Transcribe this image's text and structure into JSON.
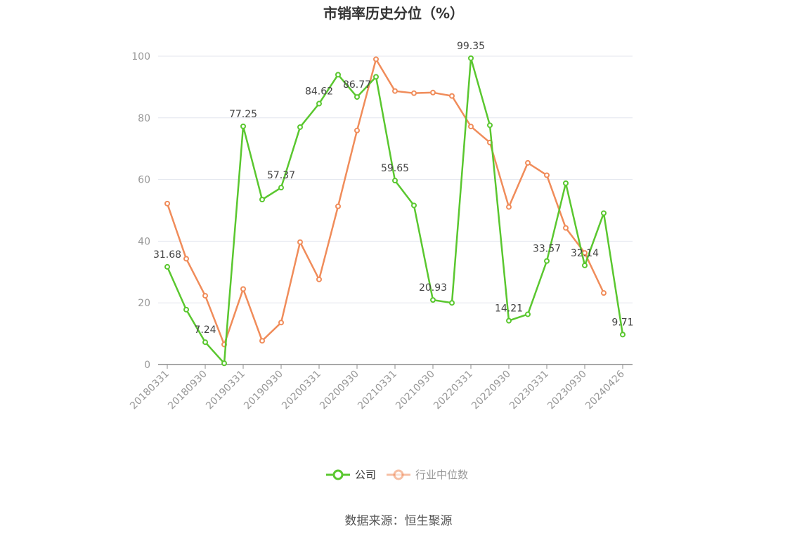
{
  "chart_data": {
    "type": "line",
    "title": "市销率历史分位（%）",
    "xlabel": "",
    "ylabel": "",
    "ylim": [
      0,
      100
    ],
    "yticks": [
      0,
      20,
      40,
      60,
      80,
      100
    ],
    "grid": true,
    "legend_position": "bottom",
    "x": [
      "20180331",
      "20180630",
      "20180930",
      "20181231",
      "20190331",
      "20190630",
      "20190930",
      "20191231",
      "20200331",
      "20200630",
      "20200930",
      "20201231",
      "20210331",
      "20210630",
      "20210930",
      "20211231",
      "20220331",
      "20220630",
      "20220930",
      "20221231",
      "20230331",
      "20230630",
      "20230930",
      "20231231",
      "20240426"
    ],
    "x_tick_labels": [
      "20180331",
      "20180930",
      "20190331",
      "20190930",
      "20200331",
      "20200930",
      "20210331",
      "20210930",
      "20220331",
      "20220930",
      "20230331",
      "20230930",
      "20240426"
    ],
    "series": [
      {
        "name": "公司",
        "color": "#5ac72f",
        "values": [
          31.68,
          17.8,
          7.24,
          0.4,
          77.25,
          53.5,
          57.37,
          77.0,
          84.62,
          94.0,
          86.77,
          93.3,
          59.65,
          51.6,
          20.93,
          20.0,
          99.35,
          77.6,
          14.21,
          16.3,
          33.57,
          58.8,
          32.14,
          49.1,
          9.71
        ],
        "data_labels": [
          {
            "index": 0,
            "text": "31.68"
          },
          {
            "index": 2,
            "text": "7.24"
          },
          {
            "index": 4,
            "text": "77.25"
          },
          {
            "index": 6,
            "text": "57.37"
          },
          {
            "index": 8,
            "text": "84.62"
          },
          {
            "index": 10,
            "text": "86.77"
          },
          {
            "index": 12,
            "text": "59.65"
          },
          {
            "index": 14,
            "text": "20.93"
          },
          {
            "index": 16,
            "text": "99.35"
          },
          {
            "index": 18,
            "text": "14.21"
          },
          {
            "index": 20,
            "text": "33.57"
          },
          {
            "index": 22,
            "text": "32.14"
          },
          {
            "index": 24,
            "text": "9.71"
          }
        ]
      },
      {
        "name": "行业中位数",
        "color": "#f08c5a",
        "values": [
          52.2,
          34.3,
          22.3,
          6.5,
          24.5,
          7.7,
          13.6,
          39.7,
          27.6,
          51.3,
          75.9,
          99.0,
          88.7,
          88.0,
          88.2,
          87.1,
          77.2,
          72.0,
          51.1,
          65.4,
          61.4,
          44.3,
          36.2,
          23.2,
          null
        ]
      }
    ],
    "source": "数据来源：恒生聚源"
  }
}
